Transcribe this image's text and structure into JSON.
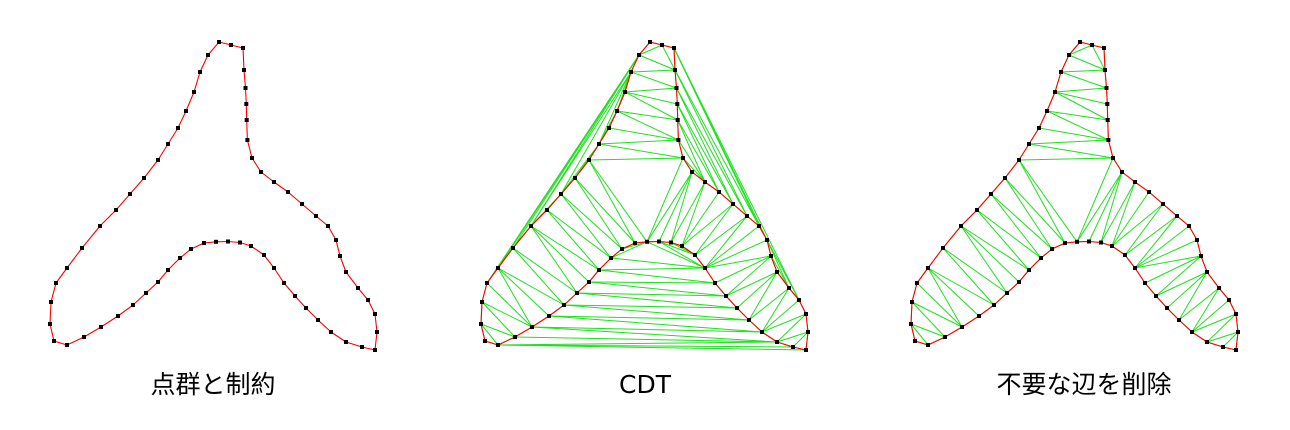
{
  "panels": [
    {
      "caption": "点群と制約"
    },
    {
      "caption": "CDT"
    },
    {
      "caption": "不要な辺を削除"
    }
  ],
  "colors": {
    "constraint_edge": "#ff0000",
    "triangulation_edge": "#1fe01f",
    "vertex": "#000000",
    "background": "#ffffff"
  }
}
